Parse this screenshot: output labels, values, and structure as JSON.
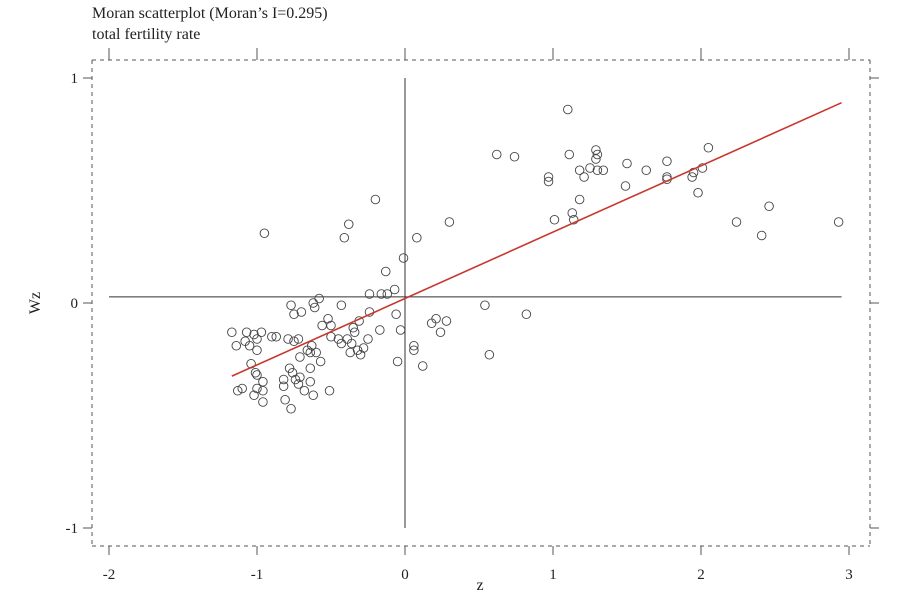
{
  "chart_data": {
    "type": "scatter",
    "title": "Moran scatterplot (Moran’s I=0.295)",
    "subtitle": "total fertility rate",
    "xlabel": "z",
    "ylabel": "Wz",
    "xlim": [
      -2.1,
      3.05
    ],
    "ylim": [
      -1.1,
      1.1
    ],
    "xticks": [
      -2,
      -1,
      0,
      1,
      2,
      3
    ],
    "xtick_labels": [
      "-2",
      "-1",
      "0",
      "1",
      "2",
      "3"
    ],
    "yticks": [
      -1,
      0,
      1
    ],
    "ytick_labels": [
      "-1",
      "0",
      "1"
    ],
    "grid": false,
    "reference_lines": {
      "x": 0,
      "y": 0.027
    },
    "fit_line": {
      "slope": 0.295,
      "intercept": 0.02,
      "x_range": [
        -1.17,
        2.95
      ],
      "color": "#c8372d"
    },
    "marker_color": "#444444",
    "points": [
      [
        -1.17,
        -0.13
      ],
      [
        -1.14,
        -0.19
      ],
      [
        -1.07,
        -0.13
      ],
      [
        -1.08,
        -0.17
      ],
      [
        -1.05,
        -0.19
      ],
      [
        -1.02,
        -0.14
      ],
      [
        -1.0,
        -0.16
      ],
      [
        -0.97,
        -0.13
      ],
      [
        -1.0,
        -0.21
      ],
      [
        -1.04,
        -0.27
      ],
      [
        -0.9,
        -0.15
      ],
      [
        -0.87,
        -0.15
      ],
      [
        -1.01,
        -0.31
      ],
      [
        -1.0,
        -0.32
      ],
      [
        -0.96,
        -0.35
      ],
      [
        -0.96,
        -0.39
      ],
      [
        -1.0,
        -0.38
      ],
      [
        -1.02,
        -0.41
      ],
      [
        -0.96,
        -0.44
      ],
      [
        -1.13,
        -0.39
      ],
      [
        -1.1,
        -0.38
      ],
      [
        -0.77,
        -0.01
      ],
      [
        -0.75,
        -0.05
      ],
      [
        -0.7,
        -0.04
      ],
      [
        -0.62,
        0.0
      ],
      [
        -0.58,
        0.02
      ],
      [
        -0.61,
        -0.02
      ],
      [
        -0.43,
        -0.01
      ],
      [
        -0.79,
        -0.16
      ],
      [
        -0.75,
        -0.17
      ],
      [
        -0.72,
        -0.16
      ],
      [
        -0.56,
        -0.1
      ],
      [
        -0.52,
        -0.07
      ],
      [
        -0.5,
        -0.1
      ],
      [
        -0.63,
        -0.19
      ],
      [
        -0.66,
        -0.21
      ],
      [
        -0.64,
        -0.22
      ],
      [
        -0.6,
        -0.22
      ],
      [
        -0.71,
        -0.24
      ],
      [
        -0.57,
        -0.26
      ],
      [
        -0.64,
        -0.29
      ],
      [
        -0.78,
        -0.29
      ],
      [
        -0.76,
        -0.31
      ],
      [
        -0.82,
        -0.34
      ],
      [
        -0.74,
        -0.34
      ],
      [
        -0.71,
        -0.33
      ],
      [
        -0.72,
        -0.36
      ],
      [
        -0.64,
        -0.35
      ],
      [
        -0.82,
        -0.37
      ],
      [
        -0.68,
        -0.39
      ],
      [
        -0.62,
        -0.41
      ],
      [
        -0.81,
        -0.43
      ],
      [
        -0.77,
        -0.47
      ],
      [
        -0.51,
        -0.39
      ],
      [
        -0.5,
        -0.15
      ],
      [
        -0.45,
        -0.16
      ],
      [
        -0.43,
        -0.18
      ],
      [
        -0.39,
        -0.16
      ],
      [
        -0.36,
        -0.18
      ],
      [
        -0.37,
        -0.22
      ],
      [
        -0.32,
        -0.21
      ],
      [
        -0.3,
        -0.23
      ],
      [
        -0.28,
        -0.2
      ],
      [
        -0.25,
        -0.16
      ],
      [
        -0.35,
        -0.11
      ],
      [
        -0.34,
        -0.13
      ],
      [
        -0.31,
        -0.08
      ],
      [
        -0.24,
        -0.04
      ],
      [
        -0.24,
        0.04
      ],
      [
        -0.16,
        0.04
      ],
      [
        -0.12,
        0.04
      ],
      [
        -0.07,
        0.06
      ],
      [
        -0.06,
        -0.05
      ],
      [
        -0.03,
        -0.12
      ],
      [
        -0.17,
        -0.12
      ],
      [
        -0.05,
        -0.26
      ],
      [
        0.06,
        -0.19
      ],
      [
        0.06,
        -0.21
      ],
      [
        0.12,
        -0.28
      ],
      [
        0.18,
        -0.09
      ],
      [
        -0.95,
        0.31
      ],
      [
        -0.41,
        0.29
      ],
      [
        -0.38,
        0.35
      ],
      [
        -0.2,
        0.46
      ],
      [
        -0.13,
        0.14
      ],
      [
        -0.01,
        0.2
      ],
      [
        0.08,
        0.29
      ],
      [
        0.3,
        0.36
      ],
      [
        0.21,
        -0.07
      ],
      [
        0.24,
        -0.13
      ],
      [
        0.28,
        -0.08
      ],
      [
        0.54,
        -0.01
      ],
      [
        0.57,
        -0.23
      ],
      [
        0.82,
        -0.05
      ],
      [
        0.62,
        0.66
      ],
      [
        0.74,
        0.65
      ],
      [
        0.97,
        0.56
      ],
      [
        0.97,
        0.54
      ],
      [
        1.01,
        0.37
      ],
      [
        1.1,
        0.86
      ],
      [
        1.11,
        0.66
      ],
      [
        1.13,
        0.4
      ],
      [
        1.14,
        0.37
      ],
      [
        1.18,
        0.46
      ],
      [
        1.18,
        0.59
      ],
      [
        1.21,
        0.56
      ],
      [
        1.25,
        0.6
      ],
      [
        1.29,
        0.68
      ],
      [
        1.29,
        0.64
      ],
      [
        1.3,
        0.66
      ],
      [
        1.3,
        0.59
      ],
      [
        1.34,
        0.59
      ],
      [
        1.49,
        0.52
      ],
      [
        1.5,
        0.62
      ],
      [
        1.63,
        0.59
      ],
      [
        1.77,
        0.63
      ],
      [
        1.77,
        0.56
      ],
      [
        1.77,
        0.55
      ],
      [
        1.94,
        0.56
      ],
      [
        1.95,
        0.58
      ],
      [
        1.98,
        0.49
      ],
      [
        2.01,
        0.6
      ],
      [
        2.05,
        0.69
      ],
      [
        2.24,
        0.36
      ],
      [
        2.41,
        0.3
      ],
      [
        2.46,
        0.43
      ],
      [
        2.93,
        0.36
      ]
    ]
  }
}
